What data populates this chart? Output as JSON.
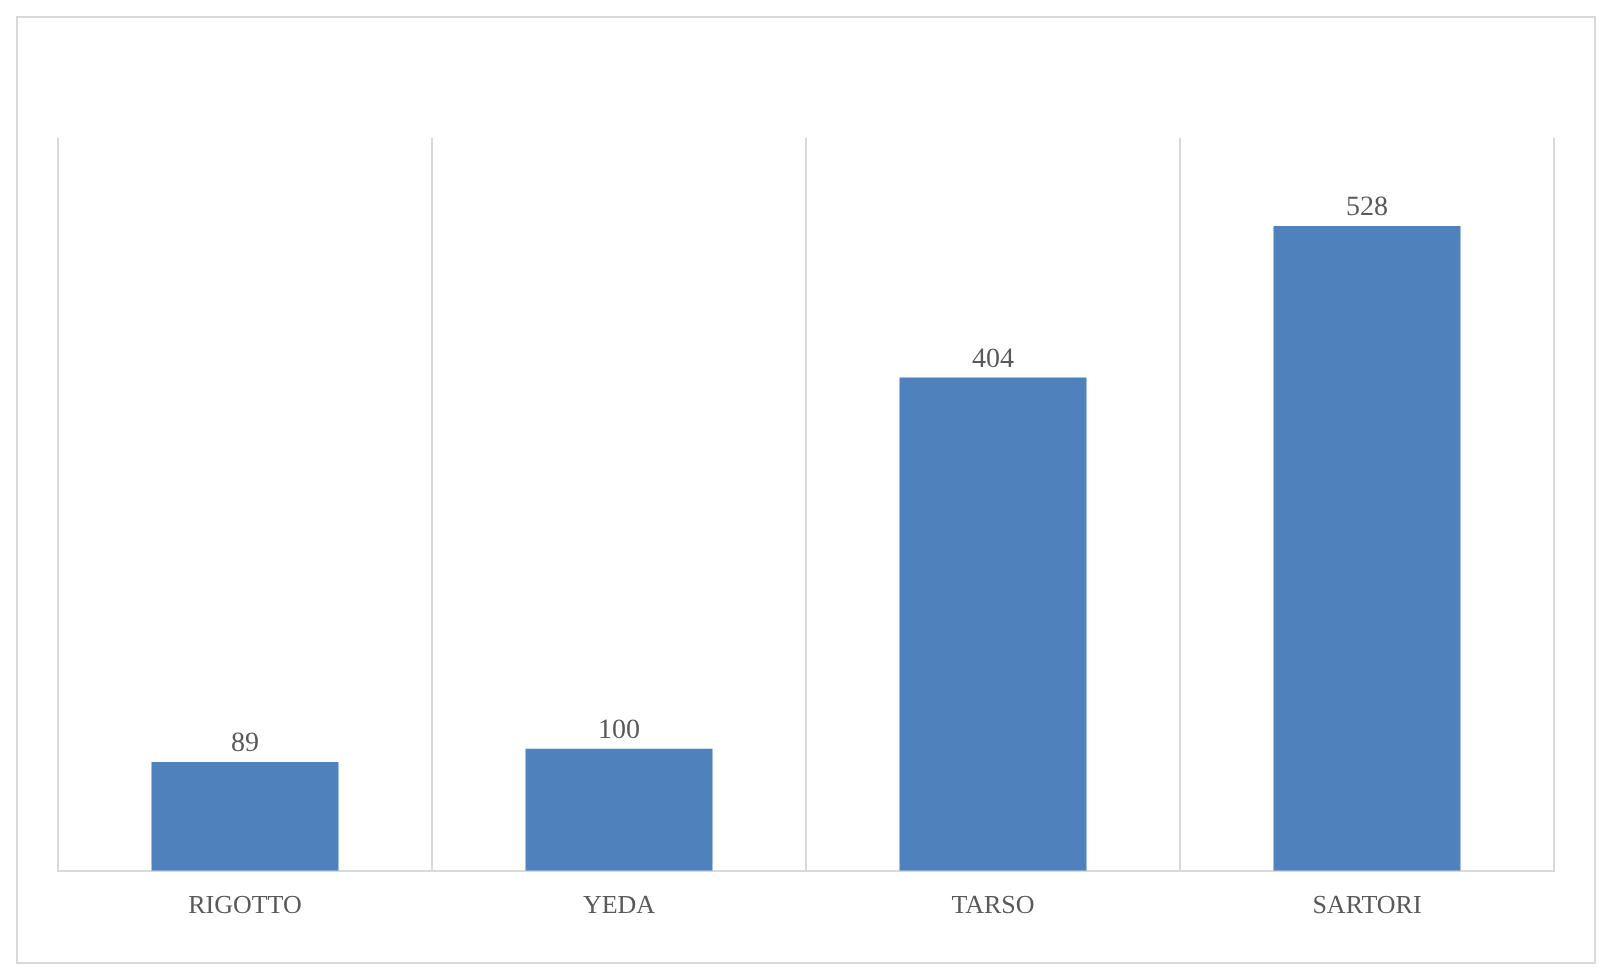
{
  "chart_data": {
    "type": "bar",
    "categories": [
      "RIGOTTO",
      "YEDA",
      "TARSO",
      "SARTORI"
    ],
    "values": [
      89,
      100,
      404,
      528
    ],
    "color": "#4f81bd",
    "data_labels": true,
    "grid": "x",
    "legend": false
  }
}
